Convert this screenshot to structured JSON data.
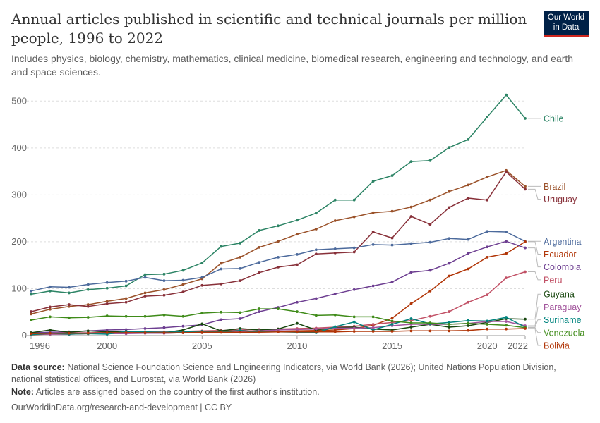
{
  "header": {
    "title": "Annual articles published in scientific and technical journals per million people, 1996 to 2022",
    "subtitle": "Includes physics, biology, chemistry, mathematics, clinical medicine, biomedical research, engineering and technology, and earth and space sciences.",
    "logo_line1": "Our World",
    "logo_line2": "in Data"
  },
  "footer": {
    "source_label": "Data source:",
    "source_text": "National Science Foundation Science and Engineering Indicators, via World Bank (2026); United Nations Population Division, national statistical offices, and Eurostat, via World Bank (2026)",
    "note_label": "Note:",
    "note_text": "Articles are assigned based on the country of the first author's institution.",
    "credit": "OurWorldinData.org/research-and-development | CC BY"
  },
  "chart_data": {
    "type": "line",
    "title": "Annual articles published in scientific and technical journals per million people, 1996 to 2022",
    "xlim": [
      1996,
      2022
    ],
    "ylim": [
      0,
      520
    ],
    "x_ticks": [
      1996,
      2000,
      2005,
      2010,
      2015,
      2020,
      2022
    ],
    "y_ticks": [
      0,
      100,
      200,
      300,
      400,
      500
    ],
    "grid": "horizontal dashed",
    "legend": "right (inline labels)",
    "x": [
      1996,
      1997,
      1998,
      1999,
      2000,
      2001,
      2002,
      2003,
      2004,
      2005,
      2006,
      2007,
      2008,
      2009,
      2010,
      2011,
      2012,
      2013,
      2014,
      2015,
      2016,
      2017,
      2018,
      2019,
      2020,
      2021,
      2022
    ],
    "series": [
      {
        "name": "Chile",
        "color": "#2c8465",
        "values": [
          88,
          95,
          91,
          98,
          101,
          106,
          130,
          131,
          139,
          155,
          190,
          197,
          224,
          234,
          246,
          261,
          289,
          289,
          329,
          341,
          371,
          373,
          401,
          418,
          466,
          513,
          463
        ]
      },
      {
        "name": "Brazil",
        "color": "#9a5129",
        "values": [
          46,
          56,
          62,
          66,
          73,
          79,
          91,
          98,
          109,
          121,
          154,
          167,
          188,
          201,
          216,
          227,
          245,
          253,
          262,
          265,
          274,
          289,
          307,
          321,
          338,
          352,
          318
        ]
      },
      {
        "name": "Uruguay",
        "color": "#883039",
        "values": [
          51,
          61,
          66,
          62,
          68,
          71,
          84,
          86,
          93,
          107,
          110,
          117,
          134,
          146,
          151,
          174,
          176,
          178,
          221,
          208,
          254,
          237,
          273,
          293,
          289,
          349,
          312
        ]
      },
      {
        "name": "Argentina",
        "color": "#4c6a9c",
        "values": [
          95,
          104,
          103,
          109,
          113,
          116,
          124,
          117,
          118,
          124,
          142,
          143,
          156,
          167,
          173,
          183,
          185,
          187,
          194,
          193,
          196,
          199,
          207,
          205,
          222,
          221,
          201
        ]
      },
      {
        "name": "Ecuador",
        "color": "#b13507",
        "values": [
          2,
          3,
          3,
          4,
          4,
          5,
          5,
          5,
          6,
          6,
          7,
          8,
          8,
          9,
          10,
          11,
          12,
          15,
          22,
          37,
          68,
          95,
          127,
          142,
          167,
          175,
          200
        ]
      },
      {
        "name": "Colombia",
        "color": "#6d3e91",
        "values": [
          6,
          7,
          8,
          10,
          12,
          13,
          15,
          17,
          20,
          23,
          34,
          36,
          51,
          60,
          71,
          79,
          89,
          98,
          106,
          114,
          135,
          139,
          154,
          175,
          189,
          201,
          187
        ]
      },
      {
        "name": "Peru",
        "color": "#c15065",
        "values": [
          5,
          5,
          6,
          6,
          7,
          7,
          8,
          8,
          9,
          10,
          11,
          12,
          13,
          14,
          15,
          16,
          18,
          20,
          24,
          28,
          32,
          41,
          51,
          71,
          87,
          123,
          136
        ]
      },
      {
        "name": "Guyana",
        "color": "#18470f",
        "values": [
          6,
          12,
          7,
          10,
          8,
          9,
          8,
          6,
          12,
          25,
          10,
          15,
          12,
          14,
          26,
          12,
          17,
          18,
          14,
          12,
          18,
          24,
          18,
          21,
          28,
          36,
          35
        ]
      },
      {
        "name": "Paraguay",
        "color": "#a2559c",
        "values": [
          3,
          3,
          3,
          4,
          4,
          4,
          5,
          5,
          6,
          7,
          8,
          9,
          10,
          12,
          13,
          14,
          16,
          16,
          17,
          21,
          24,
          24,
          24,
          26,
          30,
          30,
          21
        ]
      },
      {
        "name": "Suriname",
        "color": "#00847e",
        "values": [
          2,
          5,
          3,
          4,
          3,
          9,
          8,
          7,
          8,
          9,
          8,
          11,
          8,
          8,
          7,
          6,
          19,
          29,
          12,
          24,
          36,
          25,
          28,
          32,
          31,
          39,
          18
        ]
      },
      {
        "name": "Venezuela",
        "color": "#3f8b19",
        "values": [
          33,
          40,
          38,
          39,
          42,
          41,
          41,
          44,
          41,
          48,
          50,
          49,
          57,
          57,
          51,
          43,
          44,
          40,
          40,
          31,
          27,
          27,
          24,
          26,
          24,
          22,
          17
        ]
      },
      {
        "name": "Bolivia",
        "color": "#b13507",
        "values": [
          4,
          5,
          5,
          5,
          6,
          6,
          6,
          6,
          6,
          7,
          7,
          7,
          7,
          8,
          8,
          8,
          8,
          9,
          9,
          9,
          10,
          10,
          10,
          11,
          14,
          14,
          15
        ]
      }
    ]
  }
}
